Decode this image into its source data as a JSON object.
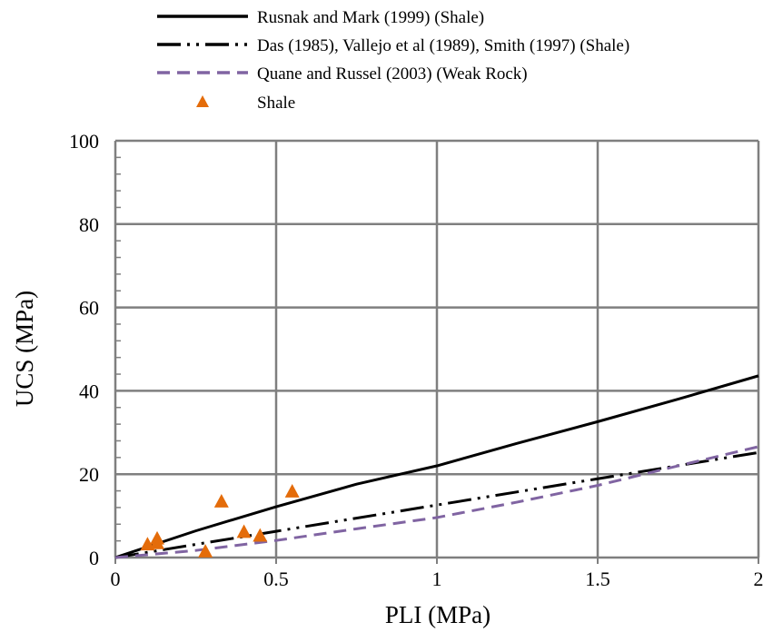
{
  "chart_data": {
    "type": "line",
    "xlabel": "PLI (MPa)",
    "ylabel": "UCS (MPa)",
    "xlim": [
      0,
      2
    ],
    "ylim": [
      0,
      100
    ],
    "x_ticks": [
      "0",
      "0.5",
      "1",
      "1.5",
      "2"
    ],
    "y_ticks": [
      "0",
      "20",
      "40",
      "60",
      "80",
      "100"
    ],
    "grid": true,
    "legend_position": "top",
    "series": [
      {
        "name": "Rusnak and Mark (1999) (Shale)",
        "style": "solid",
        "color": "#000000",
        "x": [
          0,
          0.25,
          0.5,
          0.75,
          1,
          1.25,
          1.5,
          1.75,
          2
        ],
        "y": [
          0,
          6.4,
          12.2,
          17.6,
          22.0,
          27.4,
          32.6,
          38.0,
          43.6
        ]
      },
      {
        "name": "Das (1985), Vallejo et al (1989), Smith (1997) (Shale)",
        "style": "dash-dot-dot",
        "color": "#000000",
        "x": [
          0,
          0.5,
          1,
          1.5,
          2
        ],
        "y": [
          0,
          6.3,
          12.6,
          18.9,
          25.2
        ]
      },
      {
        "name": "Quane and Russel (2003) (Weak Rock)",
        "style": "dashed",
        "color": "#8064A2",
        "x": [
          0,
          0.25,
          0.5,
          0.75,
          1,
          1.25,
          1.5,
          1.75,
          2
        ],
        "y": [
          0,
          1.7,
          4.1,
          6.9,
          9.6,
          13.3,
          17.3,
          22.0,
          26.6
        ]
      },
      {
        "name": "Shale",
        "style": "marker-triangle",
        "color": "#E46C0A",
        "x": [
          0.1,
          0.13,
          0.13,
          0.28,
          0.33,
          0.4,
          0.45,
          0.55
        ],
        "y": [
          3.2,
          3.5,
          4.6,
          1.5,
          13.5,
          6.2,
          5.3,
          15.9
        ]
      }
    ]
  }
}
